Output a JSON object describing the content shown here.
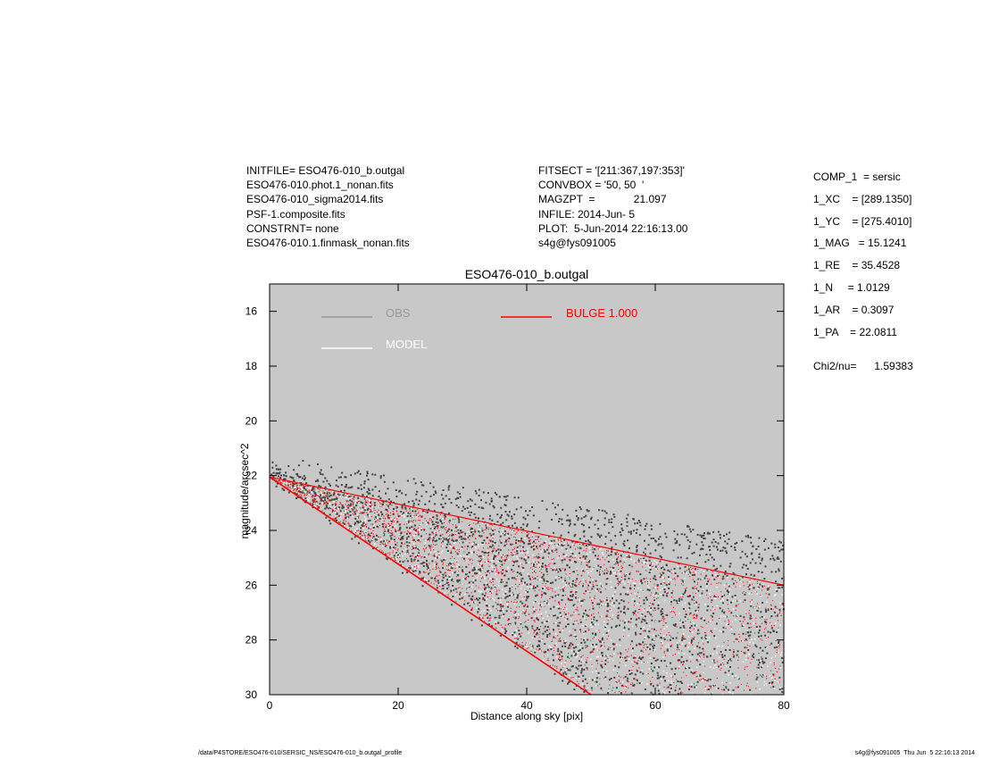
{
  "header_left": [
    "INITFILE= ESO476-010_b.outgal",
    "ESO476-010.phot.1_nonan.fits",
    "ESO476-010_sigma2014.fits",
    "PSF-1.composite.fits",
    "CONSTRNT= none",
    "ESO476-010.1.finmask_nonan.fits"
  ],
  "header_mid": [
    "FITSECT = '[211:367,197:353]'",
    "CONVBOX = '50, 50  '",
    "MAGZPT  =             21.097",
    "INFILE: 2014-Jun- 5",
    "PLOT:  5-Jun-2014 22:16:13.00",
    "s4g@fys091005"
  ],
  "params": [
    "COMP_1  = sersic",
    "1_XC    = [289.1350]",
    "1_YC    = [275.4010]",
    "1_MAG   = 15.1241",
    "1_RE    = 35.4528",
    "1_N     = 1.0129",
    "1_AR    = 0.3097",
    "1_PA    = 22.0811"
  ],
  "chi2": "Chi2/nu=      1.59383",
  "footer_left": "/data/P4STORE/ESO476-010/SERSIC_NS/ESO476-010_b.outgal_profile",
  "footer_right": "s4g@fys091005  Thu Jun  5 22:16:13 2014",
  "chart_data": {
    "type": "scatter",
    "title": "ESO476-010_b.outgal",
    "xlabel": "Distance along sky [pix]",
    "ylabel": "magnitude/arcsec^2",
    "xlim": [
      0,
      80
    ],
    "ylim": [
      30,
      15
    ],
    "xticks": [
      0,
      20,
      40,
      60,
      80
    ],
    "yticks": [
      16,
      18,
      20,
      22,
      24,
      26,
      28,
      30
    ],
    "legend": [
      {
        "name": "OBS",
        "color": "#999999"
      },
      {
        "name": "MODEL",
        "color": "#ffffff"
      },
      {
        "name": "BULGE  1.000",
        "color": "#ff0000"
      }
    ],
    "background": "#c8c8c8",
    "series": [
      {
        "name": "OBS",
        "color": "#444444",
        "envelope": {
          "apex": [
            0,
            22.0
          ],
          "upper_end": [
            80,
            25.2
          ],
          "lower_end": [
            50,
            30.0
          ]
        }
      },
      {
        "name": "BULGE  1.000",
        "color": "#ff0000",
        "envelope": {
          "apex": [
            0,
            22.05
          ],
          "upper_end": [
            80,
            26.0
          ],
          "lower_end": [
            50,
            30.0
          ]
        }
      },
      {
        "name": "MODEL",
        "color": "#ffffff",
        "envelope": {
          "apex": [
            0,
            22.05
          ],
          "upper_end": [
            80,
            26.0
          ],
          "lower_end": [
            50,
            30.0
          ]
        }
      }
    ]
  }
}
